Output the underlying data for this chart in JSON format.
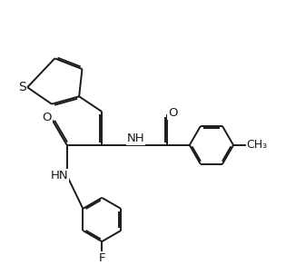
{
  "background": "#ffffff",
  "line_color": "#1a1a1a",
  "lw": 1.4,
  "fs": 9.5,
  "xlim": [
    0.2,
    9.5
  ],
  "ylim": [
    1.5,
    10.5
  ]
}
